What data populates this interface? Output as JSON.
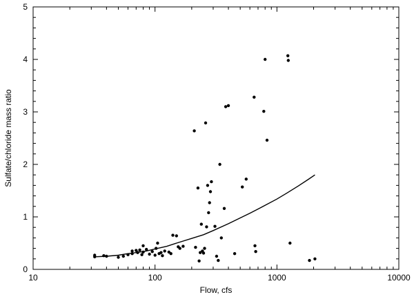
{
  "chart_data": {
    "type": "scatter",
    "title": "",
    "xlabel": "Flow, cfs",
    "ylabel": "Sulfate/chloride mass ratio",
    "x_scale": "log",
    "xlim": [
      10,
      10000
    ],
    "ylim": [
      0,
      5
    ],
    "x_ticks": [
      10,
      100,
      1000,
      10000
    ],
    "x_tick_labels": [
      "10",
      "100",
      "1000",
      "10000"
    ],
    "y_ticks": [
      0,
      1,
      2,
      3,
      4,
      5
    ],
    "y_tick_labels": [
      "0",
      "1",
      "2",
      "3",
      "4",
      "5"
    ],
    "grid": false,
    "colors": {
      "points": "#000000",
      "curve": "#000000",
      "axes": "#000000"
    },
    "series": [
      {
        "type": "scatter",
        "points": [
          [
            32,
            0.27
          ],
          [
            32,
            0.24
          ],
          [
            38,
            0.26
          ],
          [
            40,
            0.25
          ],
          [
            50,
            0.23
          ],
          [
            55,
            0.25
          ],
          [
            60,
            0.28
          ],
          [
            65,
            0.3
          ],
          [
            65,
            0.35
          ],
          [
            70,
            0.36
          ],
          [
            72,
            0.32
          ],
          [
            75,
            0.37
          ],
          [
            78,
            0.28
          ],
          [
            80,
            0.33
          ],
          [
            80,
            0.45
          ],
          [
            85,
            0.38
          ],
          [
            90,
            0.29
          ],
          [
            95,
            0.34
          ],
          [
            100,
            0.27
          ],
          [
            102,
            0.4
          ],
          [
            105,
            0.5
          ],
          [
            108,
            0.3
          ],
          [
            112,
            0.32
          ],
          [
            115,
            0.26
          ],
          [
            120,
            0.35
          ],
          [
            130,
            0.33
          ],
          [
            135,
            0.3
          ],
          [
            140,
            0.65
          ],
          [
            150,
            0.64
          ],
          [
            155,
            0.43
          ],
          [
            160,
            0.4
          ],
          [
            170,
            0.44
          ],
          [
            210,
            2.64
          ],
          [
            215,
            0.42
          ],
          [
            225,
            1.55
          ],
          [
            230,
            0.16
          ],
          [
            235,
            0.32
          ],
          [
            240,
            0.86
          ],
          [
            245,
            0.35
          ],
          [
            250,
            0.31
          ],
          [
            255,
            0.4
          ],
          [
            260,
            2.79
          ],
          [
            265,
            0.81
          ],
          [
            270,
            1.6
          ],
          [
            275,
            1.08
          ],
          [
            280,
            1.27
          ],
          [
            285,
            1.48
          ],
          [
            290,
            1.67
          ],
          [
            310,
            0.82
          ],
          [
            320,
            0.25
          ],
          [
            330,
            0.17
          ],
          [
            340,
            2.0
          ],
          [
            350,
            0.6
          ],
          [
            370,
            1.16
          ],
          [
            380,
            3.1
          ],
          [
            400,
            3.12
          ],
          [
            450,
            0.3
          ],
          [
            520,
            1.57
          ],
          [
            560,
            1.72
          ],
          [
            650,
            3.28
          ],
          [
            660,
            0.45
          ],
          [
            670,
            0.34
          ],
          [
            780,
            3.01
          ],
          [
            800,
            4.0
          ],
          [
            830,
            2.46
          ],
          [
            1230,
            4.07
          ],
          [
            1240,
            3.98
          ],
          [
            1280,
            0.5
          ],
          [
            1850,
            0.17
          ],
          [
            2050,
            0.2
          ]
        ]
      },
      {
        "type": "line",
        "points": [
          [
            32,
            0.24
          ],
          [
            40,
            0.25
          ],
          [
            50,
            0.27
          ],
          [
            60,
            0.3
          ],
          [
            70,
            0.32
          ],
          [
            85,
            0.35
          ],
          [
            100,
            0.39
          ],
          [
            125,
            0.44
          ],
          [
            150,
            0.5
          ],
          [
            200,
            0.59
          ],
          [
            250,
            0.66
          ],
          [
            300,
            0.74
          ],
          [
            400,
            0.87
          ],
          [
            500,
            0.98
          ],
          [
            600,
            1.07
          ],
          [
            700,
            1.15
          ],
          [
            800,
            1.22
          ],
          [
            1000,
            1.34
          ],
          [
            1200,
            1.45
          ],
          [
            1500,
            1.59
          ],
          [
            1800,
            1.71
          ],
          [
            2050,
            1.8
          ]
        ]
      }
    ]
  }
}
